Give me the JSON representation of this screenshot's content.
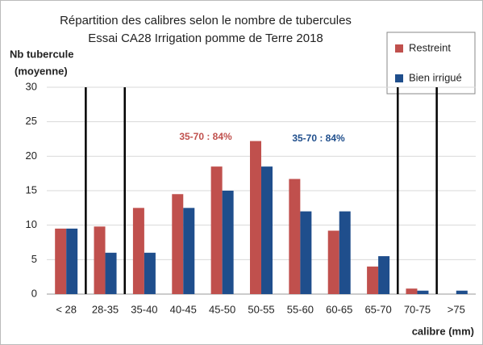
{
  "chart_data": {
    "type": "bar",
    "title": "Répartition des calibres selon le nombre de tubercules",
    "subtitle": "Essai CA28 Irrigation pomme de Terre 2018",
    "y_label": [
      "Nb tubercule",
      "(moyenne)"
    ],
    "x_label": "calibre (mm)",
    "categories": [
      "< 28",
      "28-35",
      "35-40",
      "40-45",
      "45-50",
      "50-55",
      "55-60",
      "60-65",
      "65-70",
      "70-75",
      ">75"
    ],
    "series": [
      {
        "name": "Restreint",
        "color": "#c0504d",
        "values": [
          9.5,
          9.8,
          12.5,
          14.5,
          18.5,
          22.2,
          16.7,
          9.2,
          4,
          0.8,
          0
        ]
      },
      {
        "name": "Bien irrigué",
        "color": "#1f4e8c",
        "values": [
          9.5,
          6,
          6,
          12.5,
          15,
          18.5,
          12,
          12,
          5.5,
          0.5,
          0.5
        ]
      }
    ],
    "annotations": [
      {
        "text": "35-70 : 84%",
        "color": "#c0504d"
      },
      {
        "text": "35-70 : 84%",
        "color": "#1f4e8c"
      }
    ],
    "ylim": [
      0,
      30
    ],
    "yticks": [
      0,
      5,
      10,
      15,
      20,
      25,
      30
    ],
    "grid": true,
    "legend": "top-right"
  }
}
